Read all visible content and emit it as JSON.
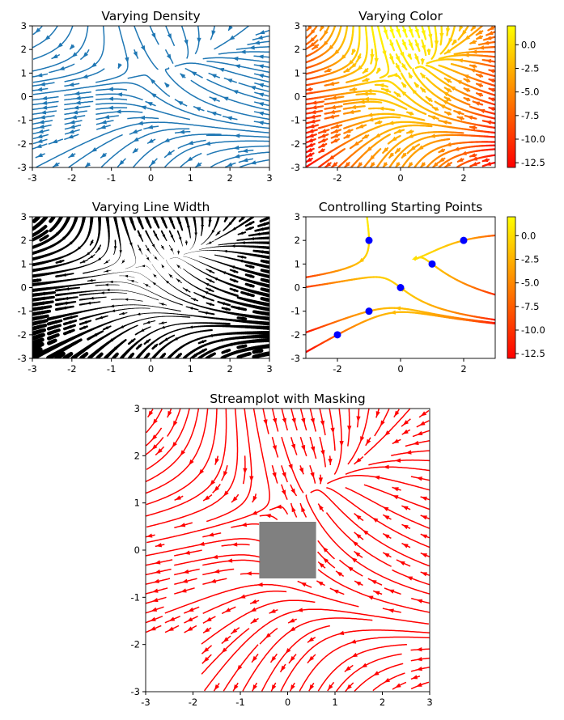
{
  "chart_data": [
    {
      "type": "line",
      "title": "Varying Density",
      "xlim": [
        -3,
        3
      ],
      "ylim": [
        -3,
        3
      ],
      "xticks": [
        "-3",
        "-2",
        "-1",
        "0",
        "1",
        "2",
        "3"
      ],
      "yticks": [
        "-3",
        "-2",
        "-1",
        "0",
        "1",
        "2",
        "3"
      ],
      "density": [
        0.5,
        1
      ],
      "color": "#1f77b4"
    },
    {
      "type": "line",
      "title": "Varying Color",
      "xlim": [
        -3,
        3
      ],
      "ylim": [
        -3,
        3
      ],
      "xticks": [
        "-2",
        "0",
        "2"
      ],
      "yticks": [
        "-3",
        "-2",
        "-1",
        "0",
        "1",
        "2",
        "3"
      ],
      "colormap": "autumn",
      "color_by": "U",
      "colorbar": {
        "range": [
          -13,
          2
        ],
        "ticks": [
          "0.0",
          "-2.5",
          "-5.0",
          "-7.5",
          "-10.0",
          "-12.5"
        ]
      }
    },
    {
      "type": "line",
      "title": "Varying Line Width",
      "xlim": [
        -3,
        3
      ],
      "ylim": [
        -3,
        3
      ],
      "xticks": [
        "-3",
        "-2",
        "-1",
        "0",
        "1",
        "2",
        "3"
      ],
      "yticks": [
        "-3",
        "-2",
        "-1",
        "0",
        "1",
        "2",
        "3"
      ],
      "color": "#000000",
      "max_linewidth": 5
    },
    {
      "type": "line",
      "title": "Controlling Starting Points",
      "xlim": [
        -3,
        3
      ],
      "ylim": [
        -3,
        3
      ],
      "xticks": [
        "-2",
        "0",
        "2"
      ],
      "yticks": [
        "-3",
        "-2",
        "-1",
        "0",
        "1",
        "2",
        "3"
      ],
      "colormap": "autumn",
      "color_by": "U",
      "colorbar": {
        "range": [
          -13,
          2
        ],
        "ticks": [
          "0.0",
          "-2.5",
          "-5.0",
          "-7.5",
          "-10.0",
          "-12.5"
        ]
      },
      "start_points": [
        [
          -2,
          -2
        ],
        [
          -1,
          -1
        ],
        [
          0,
          0
        ],
        [
          1,
          1
        ],
        [
          2,
          2
        ],
        [
          -1,
          2
        ]
      ],
      "point_color": "#0000ff"
    },
    {
      "type": "line",
      "title": "Streamplot with Masking",
      "xlim": [
        -3,
        3
      ],
      "ylim": [
        -3,
        3
      ],
      "xticks": [
        "-3",
        "-2",
        "-1",
        "0",
        "1",
        "2",
        "3"
      ],
      "yticks": [
        "-3",
        "-2",
        "-1",
        "0",
        "1",
        "2",
        "3"
      ],
      "color": "#ff0000",
      "mask_box": [
        -0.6,
        0.6,
        -0.6,
        0.6
      ],
      "mask_color": "#808080"
    }
  ]
}
